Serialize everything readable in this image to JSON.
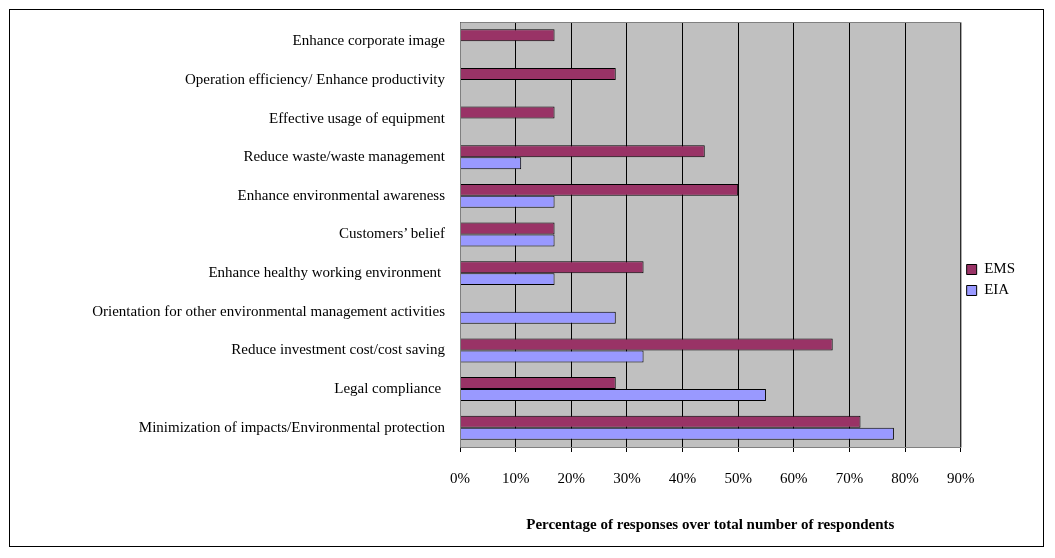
{
  "chart_data": {
    "type": "bar",
    "orientation": "horizontal",
    "xlabel": "Percentage of responses over total number of respondents",
    "categories": [
      "Enhance corporate image",
      "Operation efficiency/ Enhance productivity",
      "Effective usage of equipment",
      "Reduce waste/waste management",
      "Enhance environmental awareness",
      "Customers’ belief",
      "Enhance healthy working environment ",
      "Orientation for other environmental management activities",
      "Reduce investment cost/cost saving",
      "Legal compliance ",
      "Minimization of impacts/Environmental protection"
    ],
    "series": [
      {
        "name": "EMS",
        "color": "#993366",
        "values": [
          17,
          28,
          17,
          44,
          50,
          17,
          33,
          null,
          67,
          28,
          72
        ]
      },
      {
        "name": "EIA",
        "color": "#9999ff",
        "values": [
          null,
          null,
          null,
          11,
          17,
          17,
          17,
          28,
          33,
          55,
          78
        ]
      }
    ],
    "xlim": [
      0,
      90
    ],
    "xticks": [
      {
        "value": 0,
        "label": "0%"
      },
      {
        "value": 10,
        "label": "10%"
      },
      {
        "value": 20,
        "label": "20%"
      },
      {
        "value": 30,
        "label": "30%"
      },
      {
        "value": 40,
        "label": "40%"
      },
      {
        "value": 50,
        "label": "50%"
      },
      {
        "value": 60,
        "label": "60%"
      },
      {
        "value": 70,
        "label": "70%"
      },
      {
        "value": 80,
        "label": "80%"
      },
      {
        "value": 90,
        "label": "90%"
      }
    ],
    "grid": "x",
    "legend": "right"
  }
}
